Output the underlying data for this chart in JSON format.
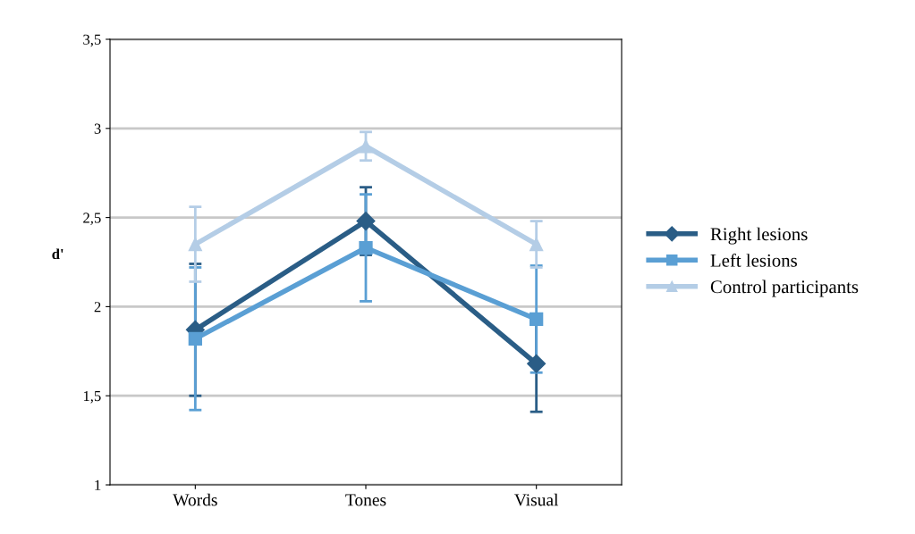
{
  "chart_data": {
    "type": "line",
    "ylabel": "d'",
    "categories": [
      "Words",
      "Tones",
      "Visual"
    ],
    "series": [
      {
        "name": "Right lesions",
        "color": "#2a5d86",
        "marker": "diamond",
        "values": [
          1.87,
          2.48,
          1.68
        ],
        "errors": [
          0.37,
          0.19,
          0.27
        ]
      },
      {
        "name": "Left lesions",
        "color": "#5a9fd4",
        "marker": "square",
        "values": [
          1.82,
          2.33,
          1.93
        ],
        "errors": [
          0.4,
          0.3,
          0.3
        ]
      },
      {
        "name": "Control participants",
        "color": "#b4cde6",
        "marker": "triangle",
        "values": [
          2.35,
          2.9,
          2.35
        ],
        "errors": [
          0.21,
          0.08,
          0.13
        ]
      }
    ],
    "ylim": [
      1,
      3.5
    ],
    "yticks": [
      1,
      {
        "value": 1.5,
        "label": "1,5"
      },
      2,
      {
        "value": 2.5,
        "label": "2,5"
      },
      3,
      {
        "value": 3.5,
        "label": "3,5"
      }
    ],
    "grid": "y",
    "legend": "right"
  }
}
